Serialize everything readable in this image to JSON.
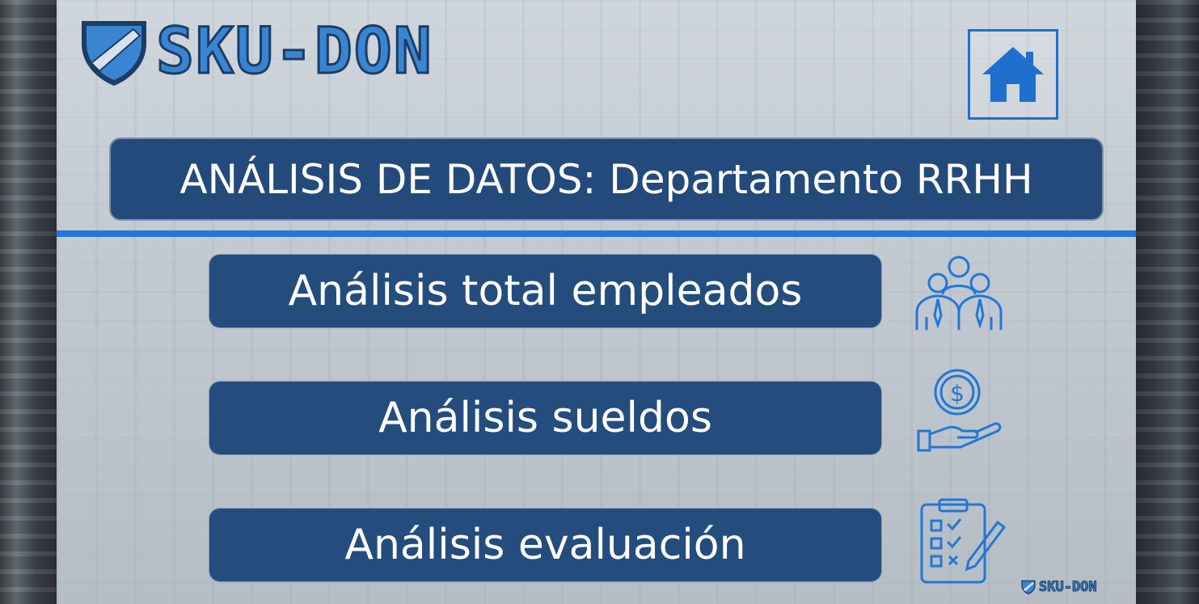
{
  "brand": {
    "name": "SKU-DON",
    "primary_color": "#3a85d1",
    "dark_color": "#234a7a"
  },
  "header": {
    "home_icon": "home-icon"
  },
  "title": "ANÁLISIS DE DATOS: Departamento RRHH",
  "menu": [
    {
      "label": "Análisis total empleados",
      "icon": "employees-group-icon"
    },
    {
      "label": "Análisis sueldos",
      "icon": "salary-hand-coin-icon"
    },
    {
      "label": "Análisis evaluación",
      "icon": "evaluation-checklist-icon"
    }
  ],
  "footer": {
    "brand": "SKU-DON"
  }
}
